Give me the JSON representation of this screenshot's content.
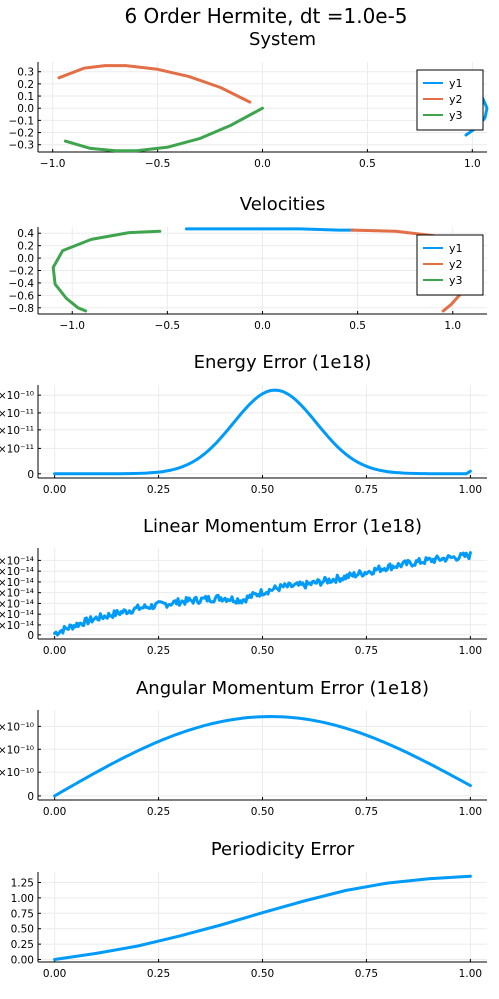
{
  "figure": {
    "title": "6 Order Hermite, dt =1.0e-5"
  },
  "colors": {
    "y1": "#009af9",
    "y2": "#e26f46",
    "y3": "#3ea44e",
    "grid": "#ebebeb",
    "axis": "#000000"
  },
  "chart_data": [
    {
      "type": "line",
      "title": "System",
      "xticks": [
        "−1.0",
        "−0.5",
        "0.0",
        "0.5",
        "1.0"
      ],
      "yticks": [
        "0.3",
        "0.2",
        "0.1",
        "0.0",
        "−0.1",
        "−0.2",
        "−0.3"
      ],
      "xlim": [
        -1.07,
        1.07
      ],
      "ylim": [
        -0.36,
        0.38
      ],
      "legend": {
        "placement": "top-right",
        "entries": [
          "y1",
          "y2",
          "y3"
        ]
      },
      "series": [
        {
          "name": "y1",
          "x": [
            0.97,
            1.01,
            1.05,
            1.07,
            1.06,
            1.02,
            0.97
          ],
          "y": [
            0.2,
            0.16,
            0.08,
            0.0,
            -0.08,
            -0.16,
            -0.22
          ]
        },
        {
          "name": "y2",
          "x": [
            -0.97,
            -0.85,
            -0.75,
            -0.65,
            -0.5,
            -0.35,
            -0.2,
            -0.06
          ],
          "y": [
            0.25,
            0.33,
            0.35,
            0.35,
            0.32,
            0.26,
            0.17,
            0.05
          ]
        },
        {
          "name": "y3",
          "x": [
            -0.94,
            -0.82,
            -0.7,
            -0.6,
            -0.45,
            -0.3,
            -0.15,
            0.0
          ],
          "y": [
            -0.27,
            -0.33,
            -0.35,
            -0.35,
            -0.32,
            -0.25,
            -0.14,
            0.0
          ]
        }
      ]
    },
    {
      "type": "line",
      "title": "Velocities",
      "xticks": [
        "−1.0",
        "−0.5",
        "0.0",
        "0.5",
        "1.0"
      ],
      "yticks": [
        "0.4",
        "0.2",
        "0.0",
        "−0.2",
        "−0.4",
        "−0.6",
        "−0.8"
      ],
      "xlim": [
        -1.18,
        1.18
      ],
      "ylim": [
        -0.9,
        0.5
      ],
      "legend": {
        "placement": "top-right",
        "entries": [
          "y1",
          "y2",
          "y3"
        ]
      },
      "series": [
        {
          "name": "y1",
          "x": [
            -0.4,
            -0.2,
            0.0,
            0.2,
            0.4,
            0.48
          ],
          "y": [
            0.47,
            0.47,
            0.47,
            0.47,
            0.45,
            0.45
          ]
        },
        {
          "name": "y2",
          "x": [
            0.47,
            0.7,
            0.9,
            1.0,
            1.06,
            1.09,
            1.08,
            1.04,
            0.99,
            0.95
          ],
          "y": [
            0.45,
            0.43,
            0.36,
            0.27,
            0.12,
            -0.1,
            -0.35,
            -0.58,
            -0.75,
            -0.85
          ]
        },
        {
          "name": "y3",
          "x": [
            -0.54,
            -0.7,
            -0.9,
            -1.05,
            -1.1,
            -1.09,
            -1.03,
            -0.97,
            -0.93
          ],
          "y": [
            0.43,
            0.41,
            0.3,
            0.12,
            -0.15,
            -0.42,
            -0.65,
            -0.8,
            -0.85
          ]
        }
      ]
    },
    {
      "type": "line",
      "title": "Energy Error (1e18)",
      "xticks": [
        "0.00",
        "0.25",
        "0.50",
        "0.75",
        "1.00"
      ],
      "yticks": [
        "×10⁻¹⁰",
        "×10⁻¹¹",
        "×10⁻¹¹",
        "×10⁻¹¹",
        "0"
      ],
      "xlim": [
        -0.04,
        1.04
      ],
      "ylim": [
        -0.05,
        1.05
      ],
      "curve": "gaussian",
      "series": [
        {
          "name": "y1",
          "peak_x": 0.53,
          "width": 0.2,
          "start_y": 0.0,
          "end_y": 0.03
        }
      ]
    },
    {
      "type": "line",
      "title": "Linear Momentum Error (1e18)",
      "xticks": [
        "0.00",
        "0.25",
        "0.50",
        "0.75",
        "1.00"
      ],
      "yticks": [
        "×10⁻¹⁴",
        "×10⁻¹⁴",
        "×10⁻¹⁴",
        "×10⁻¹⁴",
        "×10⁻¹⁴",
        "×10⁻¹⁴",
        "×10⁻¹⁴",
        "0"
      ],
      "xlim": [
        -0.04,
        1.04
      ],
      "ylim": [
        -0.05,
        1.05
      ],
      "curve": "noisy-trend",
      "series": [
        {
          "name": "y1",
          "x": [
            0.0,
            0.05,
            0.1,
            0.2,
            0.3,
            0.4,
            0.45,
            0.5,
            0.55,
            0.6,
            0.7,
            0.75,
            0.8,
            0.9,
            1.0
          ],
          "y": [
            0.02,
            0.12,
            0.2,
            0.32,
            0.4,
            0.45,
            0.42,
            0.52,
            0.58,
            0.6,
            0.7,
            0.76,
            0.82,
            0.9,
            0.96
          ]
        }
      ]
    },
    {
      "type": "line",
      "title": "Angular Momentum Error (1e18)",
      "xticks": [
        "0.00",
        "0.25",
        "0.50",
        "0.75",
        "1.00"
      ],
      "yticks": [
        "×10⁻¹⁰",
        "×10⁻¹⁰",
        "×10⁻¹⁰",
        "0"
      ],
      "xlim": [
        -0.04,
        1.04
      ],
      "ylim": [
        -0.05,
        1.05
      ],
      "curve": "arch",
      "series": [
        {
          "name": "y1",
          "peak_x": 0.52,
          "start_y": 0.0,
          "end_y": 0.13
        }
      ]
    },
    {
      "type": "line",
      "title": "Periodicity Error",
      "xticks": [
        "0.00",
        "0.25",
        "0.50",
        "0.75",
        "1.00"
      ],
      "yticks": [
        "1.25",
        "1.00",
        "0.75",
        "0.50",
        "0.25",
        "0.00"
      ],
      "xlim": [
        -0.04,
        1.04
      ],
      "ylim": [
        -0.04,
        1.42
      ],
      "curve": "sigmoid",
      "series": [
        {
          "name": "y1",
          "x": [
            0.0,
            0.1,
            0.2,
            0.3,
            0.4,
            0.5,
            0.6,
            0.7,
            0.8,
            0.9,
            1.0
          ],
          "y": [
            0.0,
            0.1,
            0.22,
            0.38,
            0.56,
            0.76,
            0.95,
            1.12,
            1.24,
            1.31,
            1.35
          ]
        }
      ]
    }
  ]
}
